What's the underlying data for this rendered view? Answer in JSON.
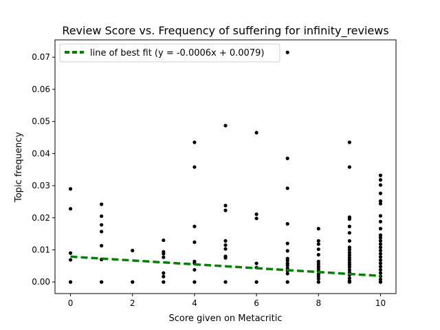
{
  "chart_data": {
    "type": "scatter",
    "title": "Review Score vs. Frequency of suffering for infinity_reviews",
    "xlabel": "Score given on Metacritic",
    "ylabel": "Topic frequency",
    "xlim": [
      -0.5,
      10.5
    ],
    "ylim": [
      -0.0036,
      0.0754
    ],
    "xticks": [
      0,
      2,
      4,
      6,
      8,
      10
    ],
    "xtick_labels": [
      "0",
      "2",
      "4",
      "6",
      "8",
      "10"
    ],
    "yticks": [
      0.0,
      0.01,
      0.02,
      0.03,
      0.04,
      0.05,
      0.06,
      0.07
    ],
    "ytick_labels": [
      "0.00",
      "0.01",
      "0.02",
      "0.03",
      "0.04",
      "0.05",
      "0.06",
      "0.07"
    ],
    "grid": false,
    "legend_position": "top-left",
    "points": [
      [
        0,
        0.029
      ],
      [
        0,
        0.0228
      ],
      [
        0,
        0.009
      ],
      [
        0,
        0.0069
      ],
      [
        0,
        0.0
      ],
      [
        0,
        0.0
      ],
      [
        1,
        0.0242
      ],
      [
        1,
        0.0205
      ],
      [
        1,
        0.0178
      ],
      [
        1,
        0.0157
      ],
      [
        1,
        0.0113
      ],
      [
        1,
        0.007
      ],
      [
        1,
        0.0
      ],
      [
        1,
        0.0
      ],
      [
        2,
        0.0098
      ],
      [
        2,
        0.0
      ],
      [
        2,
        0.0
      ],
      [
        3,
        0.013
      ],
      [
        3,
        0.0094
      ],
      [
        3,
        0.0088
      ],
      [
        3,
        0.0077
      ],
      [
        3,
        0.0028
      ],
      [
        3,
        0.0017
      ],
      [
        3,
        0.0
      ],
      [
        3,
        0.0
      ],
      [
        4,
        0.0435
      ],
      [
        4,
        0.0358
      ],
      [
        4,
        0.0173
      ],
      [
        4,
        0.0124
      ],
      [
        4,
        0.0064
      ],
      [
        4,
        0.0058
      ],
      [
        4,
        0.0038
      ],
      [
        4,
        0.0
      ],
      [
        4,
        0.0
      ],
      [
        5,
        0.0487
      ],
      [
        5,
        0.0238
      ],
      [
        5,
        0.0223
      ],
      [
        5,
        0.0128
      ],
      [
        5,
        0.0115
      ],
      [
        5,
        0.0103
      ],
      [
        5,
        0.008
      ],
      [
        5,
        0.0075
      ],
      [
        5,
        0.0
      ],
      [
        5,
        0.0
      ],
      [
        6,
        0.0465
      ],
      [
        6,
        0.0211
      ],
      [
        6,
        0.0198
      ],
      [
        6,
        0.0058
      ],
      [
        6,
        0.0045
      ],
      [
        6,
        0.0
      ],
      [
        6,
        0.0
      ],
      [
        7,
        0.0715
      ],
      [
        7,
        0.0385
      ],
      [
        7,
        0.0292
      ],
      [
        7,
        0.0181
      ],
      [
        7,
        0.012
      ],
      [
        7,
        0.0097
      ],
      [
        7,
        0.0073
      ],
      [
        7,
        0.0067
      ],
      [
        7,
        0.0058
      ],
      [
        7,
        0.0052
      ],
      [
        7,
        0.0043
      ],
      [
        7,
        0.0035
      ],
      [
        7,
        0.0026
      ],
      [
        7,
        0.0
      ],
      [
        7,
        0.0
      ],
      [
        8,
        0.0166
      ],
      [
        8,
        0.0128
      ],
      [
        8,
        0.0118
      ],
      [
        8,
        0.0102
      ],
      [
        8,
        0.0085
      ],
      [
        8,
        0.0064
      ],
      [
        8,
        0.0056
      ],
      [
        8,
        0.0048
      ],
      [
        8,
        0.0041
      ],
      [
        8,
        0.0034
      ],
      [
        8,
        0.0025
      ],
      [
        8,
        0.0018
      ],
      [
        8,
        0.001
      ],
      [
        8,
        0.0
      ],
      [
        8,
        0.0
      ],
      [
        9,
        0.0435
      ],
      [
        9,
        0.0358
      ],
      [
        9,
        0.0202
      ],
      [
        9,
        0.0196
      ],
      [
        9,
        0.0173
      ],
      [
        9,
        0.0153
      ],
      [
        9,
        0.0128
      ],
      [
        9,
        0.0108
      ],
      [
        9,
        0.0101
      ],
      [
        9,
        0.0092
      ],
      [
        9,
        0.0084
      ],
      [
        9,
        0.0076
      ],
      [
        9,
        0.0069
      ],
      [
        9,
        0.0061
      ],
      [
        9,
        0.0054
      ],
      [
        9,
        0.0047
      ],
      [
        9,
        0.0038
      ],
      [
        9,
        0.003
      ],
      [
        9,
        0.0022
      ],
      [
        9,
        0.0012
      ],
      [
        9,
        0.0004
      ],
      [
        9,
        0.0
      ],
      [
        9,
        0.0
      ],
      [
        10,
        0.0332
      ],
      [
        10,
        0.0318
      ],
      [
        10,
        0.0302
      ],
      [
        10,
        0.0276
      ],
      [
        10,
        0.0252
      ],
      [
        10,
        0.0244
      ],
      [
        10,
        0.0206
      ],
      [
        10,
        0.0188
      ],
      [
        10,
        0.0166
      ],
      [
        10,
        0.0146
      ],
      [
        10,
        0.0138
      ],
      [
        10,
        0.0128
      ],
      [
        10,
        0.0118
      ],
      [
        10,
        0.0108
      ],
      [
        10,
        0.0098
      ],
      [
        10,
        0.0088
      ],
      [
        10,
        0.0078
      ],
      [
        10,
        0.0068
      ],
      [
        10,
        0.0058
      ],
      [
        10,
        0.0048
      ],
      [
        10,
        0.0038
      ],
      [
        10,
        0.0028
      ],
      [
        10,
        0.0018
      ],
      [
        10,
        0.0008
      ],
      [
        10,
        0.0
      ],
      [
        10,
        0.0
      ]
    ],
    "point_color": "#000000",
    "trendline": {
      "label": "line of best fit (y = -0.0006x + 0.0079)",
      "slope": -0.0006,
      "intercept": 0.0079,
      "x_range": [
        0,
        10
      ],
      "color": "#008000",
      "style": "dashed"
    }
  }
}
